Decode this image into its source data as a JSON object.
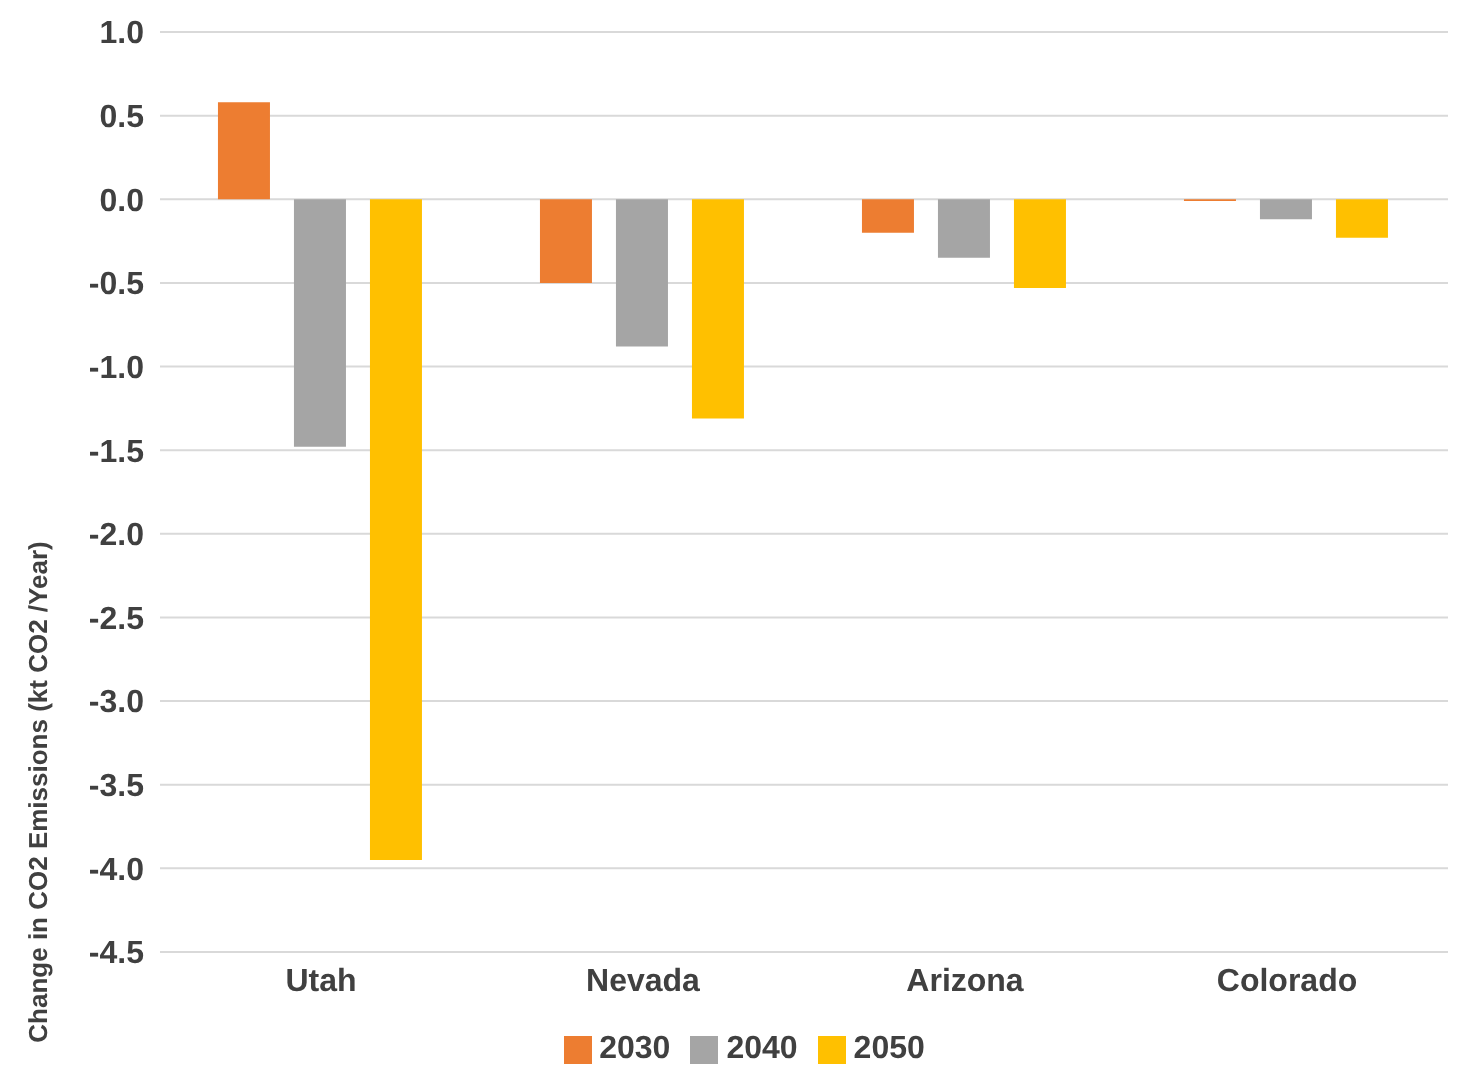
{
  "chart_data": {
    "type": "bar",
    "ylabel": "Change in CO2 Emissions (kt CO2 /Year)",
    "categories": [
      "Utah",
      "Nevada",
      "Arizona",
      "Colorado"
    ],
    "series": [
      {
        "name": "2030",
        "color": "#ed7d31",
        "values": [
          0.58,
          -0.5,
          -0.2,
          -0.01
        ]
      },
      {
        "name": "2040",
        "color": "#a5a5a5",
        "values": [
          -1.48,
          -0.88,
          -0.35,
          -0.12
        ]
      },
      {
        "name": "2050",
        "color": "#ffc000",
        "values": [
          -3.95,
          -1.31,
          -0.53,
          -0.23
        ]
      }
    ],
    "ylim": [
      -4.5,
      1.0
    ],
    "yticks": [
      {
        "value": -4.5,
        "label": "-4.5"
      },
      {
        "value": -4,
        "label": "-4.0"
      },
      {
        "value": -3.5,
        "label": "-3.5"
      },
      {
        "value": -3,
        "label": "-3.0"
      },
      {
        "value": -2.5,
        "label": "-2.5"
      },
      {
        "value": -2,
        "label": "-2.0"
      },
      {
        "value": -1.5,
        "label": "-1.5"
      },
      {
        "value": -1,
        "label": "-1.0"
      },
      {
        "value": -0.5,
        "label": "-0.5"
      },
      {
        "value": 0,
        "label": "0.0"
      },
      {
        "value": 0.5,
        "label": "0.5"
      },
      {
        "value": 1,
        "label": "1.0"
      }
    ],
    "grid": "y",
    "legend": "bottom"
  }
}
